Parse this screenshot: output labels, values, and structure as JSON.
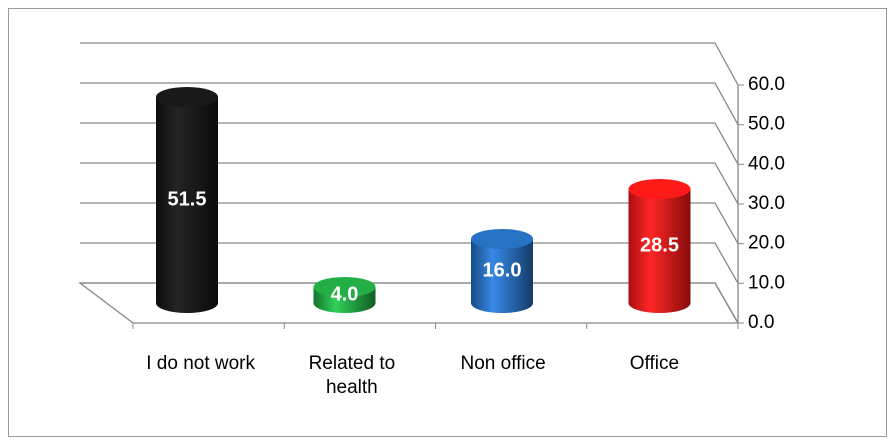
{
  "chart_data": {
    "type": "bar3d",
    "categories": [
      "I do not work",
      "Related to health",
      "Non office",
      "Office"
    ],
    "values": [
      51.5,
      4.0,
      16.0,
      28.5
    ],
    "value_labels": [
      "51.5",
      "4.0",
      "16.0",
      "28.5"
    ],
    "colors": [
      "#111111",
      "#1a9a3a",
      "#1f62ad",
      "#e31212"
    ],
    "ylim": [
      0,
      60
    ],
    "yticks": [
      {
        "value": 0,
        "label": "0.0"
      },
      {
        "value": 10,
        "label": "10.0"
      },
      {
        "value": 20,
        "label": "20.0"
      },
      {
        "value": 30,
        "label": "30.0"
      },
      {
        "value": 40,
        "label": "40.0"
      },
      {
        "value": 50,
        "label": "50.0"
      },
      {
        "value": 60,
        "label": "60.0"
      }
    ],
    "grid": true
  }
}
